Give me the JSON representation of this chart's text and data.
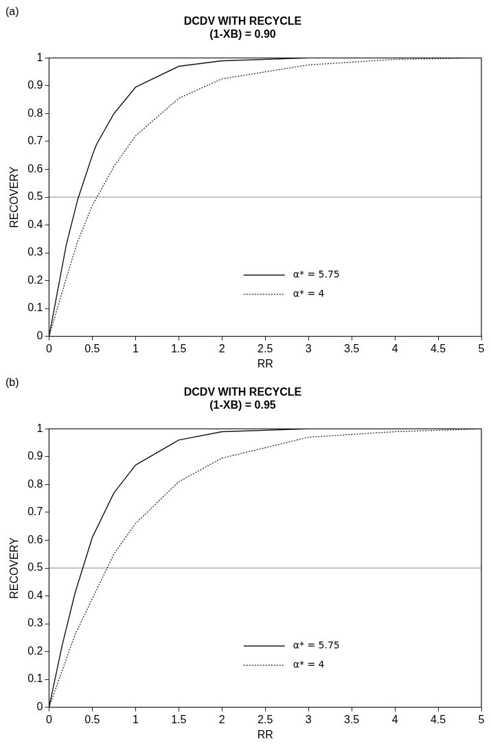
{
  "chart_data": [
    {
      "type": "line",
      "title": "DCDV WITH RECYCLE",
      "subtitle": "(1-XB) = 0.90",
      "xlabel": "RR",
      "ylabel": "RECOVERY",
      "annotations": [
        "(a)"
      ],
      "xlim": [
        0,
        5
      ],
      "xticks": [
        0,
        0.5,
        1,
        1.5,
        2,
        2.5,
        3,
        3.5,
        4,
        4.5,
        5
      ],
      "ylim": [
        0,
        1
      ],
      "yticks": [
        0,
        0.1,
        0.2,
        0.3,
        0.4,
        0.5,
        0.6,
        0.7,
        0.8,
        0.9,
        1
      ],
      "grid": false,
      "legend": "bottom",
      "marker": "none",
      "ref_lines": [
        {
          "axis": "y",
          "value": 0.5,
          "color": "#888888"
        }
      ],
      "series": [
        {
          "name": "α* = 5.75",
          "color": "#111111",
          "line_style": "solid",
          "x": [
            0,
            0.2,
            0.33,
            0.5,
            0.55,
            0.75,
            1,
            1.5,
            2,
            3,
            5
          ],
          "values": [
            0,
            0.33,
            0.49,
            0.65,
            0.69,
            0.8,
            0.895,
            0.97,
            0.99,
            1.0,
            1.0
          ]
        },
        {
          "name": "α* = 4",
          "color": "#333333",
          "line_style": "dotted",
          "x": [
            0,
            0.2,
            0.33,
            0.5,
            0.75,
            1,
            1.5,
            2,
            3,
            4,
            5
          ],
          "values": [
            0,
            0.21,
            0.34,
            0.47,
            0.61,
            0.72,
            0.855,
            0.925,
            0.975,
            0.995,
            1.0
          ]
        }
      ]
    },
    {
      "type": "line",
      "title": "DCDV WITH RECYCLE",
      "subtitle": "(1-XB) = 0.95",
      "xlabel": "RR",
      "ylabel": "RECOVERY",
      "annotations": [
        "(b)"
      ],
      "xlim": [
        0,
        5
      ],
      "xticks": [
        0,
        0.5,
        1,
        1.5,
        2,
        2.5,
        3,
        3.5,
        4,
        4.5,
        5
      ],
      "ylim": [
        0,
        1
      ],
      "yticks": [
        0,
        0.1,
        0.2,
        0.3,
        0.4,
        0.5,
        0.6,
        0.7,
        0.8,
        0.9,
        1
      ],
      "grid": false,
      "legend": "bottom",
      "marker": "none",
      "ref_lines": [
        {
          "axis": "y",
          "value": 0.5,
          "color": "#888888"
        }
      ],
      "series": [
        {
          "name": "α* = 5.75",
          "color": "#111111",
          "line_style": "solid",
          "x": [
            0,
            0.15,
            0.3,
            0.5,
            0.75,
            1,
            1.5,
            2,
            3,
            5
          ],
          "values": [
            0,
            0.22,
            0.41,
            0.61,
            0.77,
            0.87,
            0.96,
            0.99,
            1.0,
            1.0
          ]
        },
        {
          "name": "α* = 4",
          "color": "#333333",
          "line_style": "dotted",
          "x": [
            0,
            0.3,
            0.5,
            0.75,
            1,
            1.5,
            2,
            3,
            4,
            5
          ],
          "values": [
            0,
            0.26,
            0.39,
            0.55,
            0.66,
            0.81,
            0.895,
            0.97,
            0.99,
            1.0
          ]
        }
      ]
    }
  ]
}
